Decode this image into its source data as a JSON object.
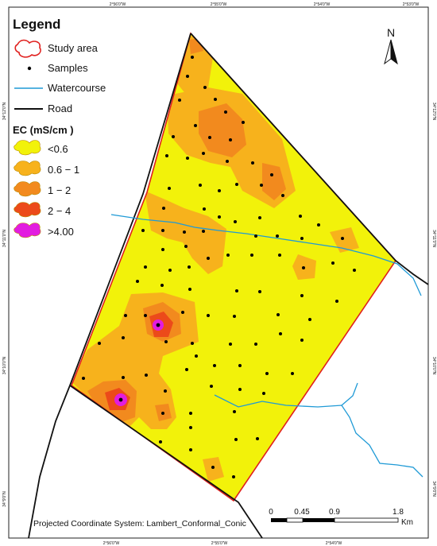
{
  "legend": {
    "title": "Legend",
    "items": [
      {
        "label": "Study area",
        "symbol": "study-area"
      },
      {
        "label": "Samples",
        "symbol": "dot"
      },
      {
        "label": "Watercourse",
        "symbol": "watercourse"
      },
      {
        "label": "Road",
        "symbol": "road"
      }
    ],
    "ec_title": "EC (mS/cm )",
    "ec_classes": [
      {
        "label": "<0.6",
        "color": "#f2f20a"
      },
      {
        "label": "0.6 − 1",
        "color": "#f7b21c"
      },
      {
        "label": "1 − 2",
        "color": "#f28a1e"
      },
      {
        "label": "2 − 4",
        "color": "#ec4a1a"
      },
      {
        "label": ">4.00",
        "color": "#e21ce0"
      }
    ]
  },
  "north_arrow": {
    "label": "N"
  },
  "graticule": {
    "top_ticks": [
      "2°56'0\"W",
      "2°55'0\"W",
      "2°54'0\"W",
      "2°53'0\"W"
    ],
    "bottom_ticks": [
      "2°56'0\"W",
      "2°55'0\"W",
      "2°54'0\"W"
    ],
    "left_ticks": [
      "34°12'0\"N",
      "34°11'0\"N",
      "34°10'0\"N",
      "34°9'0\"N"
    ],
    "right_ticks": [
      "34°12'0\"N",
      "34°11'0\"N",
      "34°10'0\"N",
      "34°9'0\"N"
    ]
  },
  "projection_note": "Projected Coordinate System: Lambert_Conformal_Conic",
  "scale_bar": {
    "labels": [
      "0",
      "0.45",
      "0.9",
      "1.8"
    ],
    "unit": "Km"
  },
  "colors": {
    "study_area_outline": "#e0201e",
    "watercourse": "#1f9ad6",
    "road": "#111111",
    "sample": "#000000"
  }
}
